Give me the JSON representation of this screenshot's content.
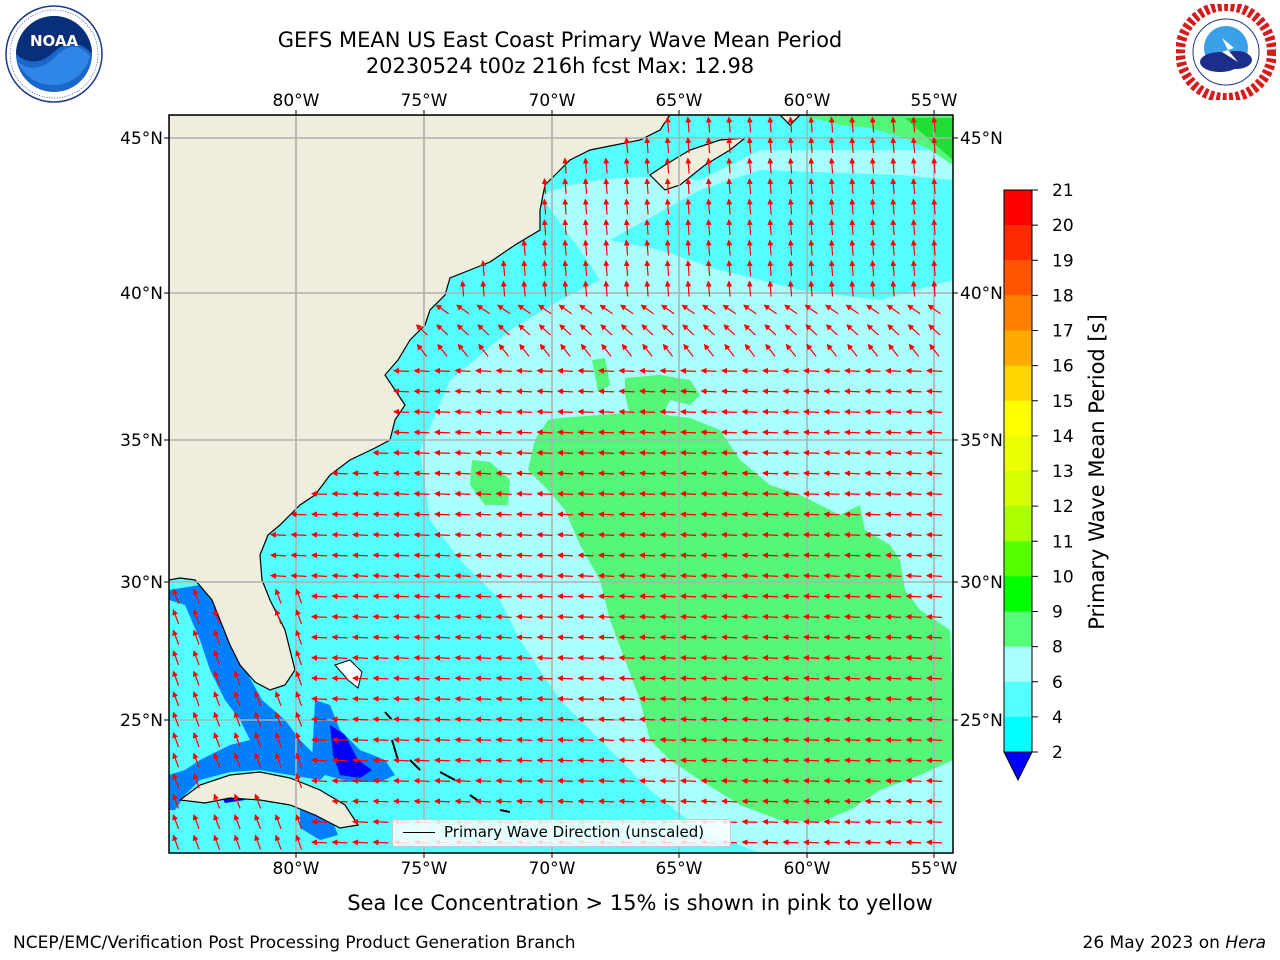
{
  "header": {
    "title_line1": "GEFS MEAN US East Coast Primary Wave Mean Period",
    "title_line2": "20230524 t00z 216h fcst   Max: 12.98"
  },
  "logos": {
    "left": {
      "text": "NOAA",
      "ring_text": "NATIONAL OCEANIC AND ATMOSPHERIC ADMINISTRATION · U.S. DEPARTMENT OF COMMERCE",
      "icon": "noaa-logo"
    },
    "right": {
      "ring_text": "NATIONAL WEATHER SERVICE",
      "icon": "nws-logo"
    }
  },
  "map": {
    "lon_labels": [
      "80°W",
      "75°W",
      "70°W",
      "65°W",
      "60°W",
      "55°W"
    ],
    "lat_labels": [
      "45°N",
      "40°N",
      "35°N",
      "30°N",
      "25°N"
    ],
    "land_color": "#efeddc",
    "grid_color": "#b0b0b0",
    "arrow_color": "#ff0000",
    "coast_color": "#000000"
  },
  "colorbar": {
    "label": "Primary Wave Mean Period [s]",
    "ticks": [
      "21",
      "20",
      "19",
      "18",
      "17",
      "16",
      "15",
      "14",
      "13",
      "12",
      "11",
      "10",
      "9",
      "8",
      "6",
      "4",
      "2"
    ],
    "colors_top_to_bottom": [
      "#ff0000",
      "#ff2a00",
      "#ff5500",
      "#ff8000",
      "#ffaa00",
      "#ffd500",
      "#ffff00",
      "#eaff00",
      "#d4ff00",
      "#aaff00",
      "#55ff00",
      "#00ff00",
      "#55ff77",
      "#aaffff",
      "#55ffff",
      "#00ffff",
      "#0080ff",
      "#0000ff"
    ]
  },
  "legend": {
    "label": "Primary Wave Direction (unscaled)"
  },
  "note": "Sea Ice Concentration > 15% is shown in pink to yellow",
  "footer": {
    "left": "NCEP/EMC/Verification Post Processing Product Generation Branch",
    "right_prefix": "26 May 2023 on ",
    "right_host": "Hera"
  }
}
